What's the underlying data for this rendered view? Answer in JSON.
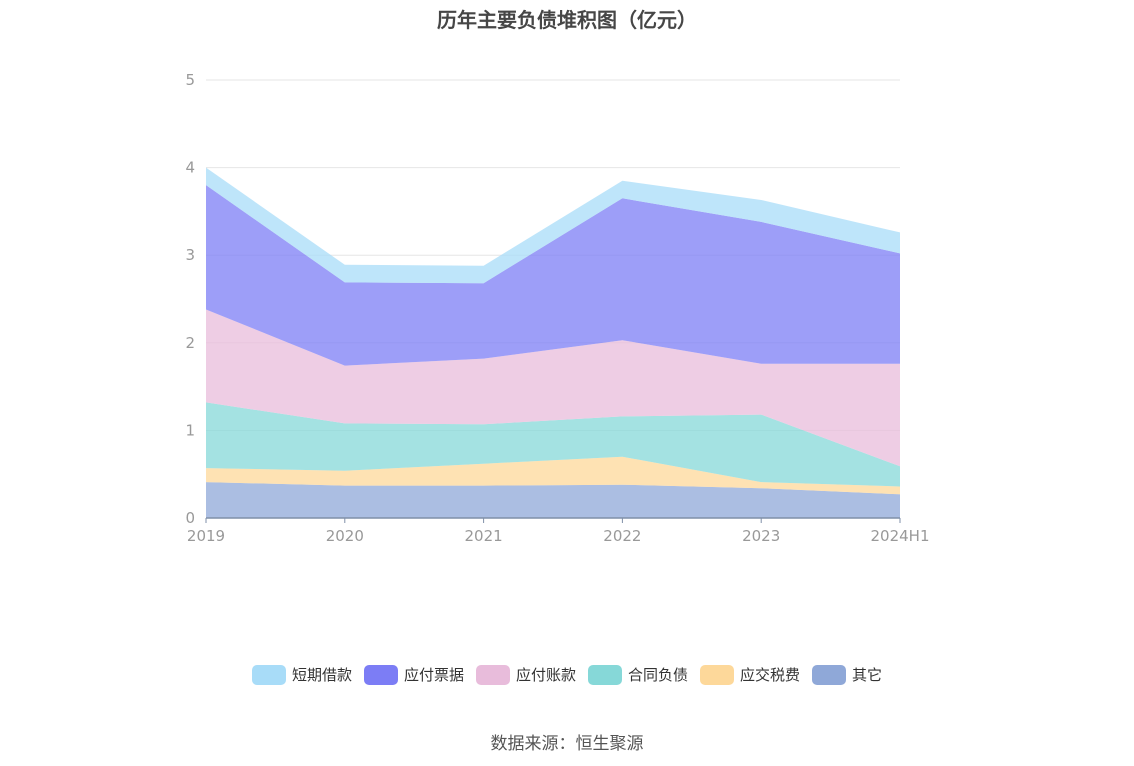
{
  "title": "历年主要负债堆积图（亿元）",
  "source": "数据来源：恒生聚源",
  "chart_data": {
    "type": "area",
    "stacked": true,
    "categories": [
      "2019",
      "2020",
      "2021",
      "2022",
      "2023",
      "2024H1"
    ],
    "ylim": [
      0,
      5
    ],
    "yticks": [
      "0",
      "1",
      "2",
      "3",
      "4",
      "5"
    ],
    "grid": true,
    "legend_position": "bottom",
    "series": [
      {
        "name": "其它",
        "color": "#8fa8d8",
        "values": [
          0.41,
          0.37,
          0.37,
          0.38,
          0.34,
          0.27
        ]
      },
      {
        "name": "应交税费",
        "color": "#fdd89a",
        "values": [
          0.16,
          0.17,
          0.25,
          0.32,
          0.07,
          0.09
        ]
      },
      {
        "name": "合同负债",
        "color": "#86d8d8",
        "values": [
          0.75,
          0.54,
          0.45,
          0.46,
          0.77,
          0.23
        ]
      },
      {
        "name": "应付账款",
        "color": "#e8bcdb",
        "values": [
          1.06,
          0.66,
          0.75,
          0.87,
          0.58,
          1.17
        ]
      },
      {
        "name": "应付票据",
        "color": "#7c7df5",
        "values": [
          1.42,
          0.95,
          0.86,
          1.62,
          1.62,
          1.26
        ]
      },
      {
        "name": "短期借款",
        "color": "#a8dcf8",
        "values": [
          0.2,
          0.2,
          0.2,
          0.2,
          0.25,
          0.24
        ]
      }
    ]
  },
  "legend_order": [
    "短期借款",
    "应付票据",
    "应付账款",
    "合同负债",
    "应交税费",
    "其它"
  ]
}
